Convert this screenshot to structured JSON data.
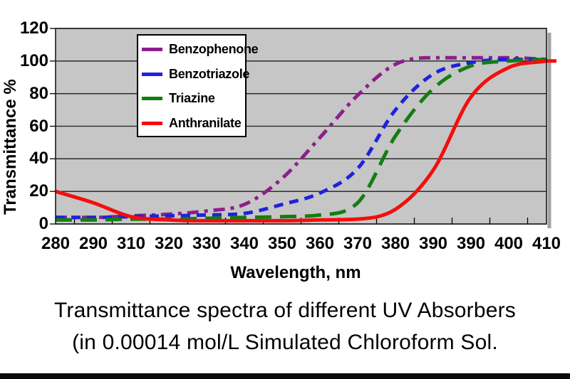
{
  "chart_data": {
    "type": "line",
    "title": "",
    "xlabel": "Wavelength, nm",
    "ylabel": "Transmittance %",
    "x_tick_labels": [
      "280",
      "290",
      "310",
      "320",
      "330",
      "340",
      "350",
      "360",
      "370",
      "380",
      "390",
      "390",
      "400",
      "410"
    ],
    "y_ticks": [
      0,
      20,
      40,
      60,
      80,
      100,
      120
    ],
    "ylim": [
      0,
      120
    ],
    "grid": "horizontal-black-lines",
    "plot_bg_color": "#c6c6c6",
    "gridline_color": "#1f1f1f",
    "legend_position": "top-left-inside",
    "series": [
      {
        "name": "Benzophenone",
        "color": "#8c1f8c",
        "dash": "dash-dot",
        "values": [
          4,
          4,
          5,
          6,
          8,
          12,
          28,
          53,
          79,
          98,
          102,
          102,
          102,
          101
        ]
      },
      {
        "name": "Benzotriazole",
        "color": "#2121dd",
        "dash": "dashed",
        "values": [
          4,
          4,
          4.5,
          5,
          5.5,
          6.5,
          12,
          19,
          34,
          70,
          92,
          99,
          101,
          101
        ]
      },
      {
        "name": "Triazine",
        "color": "#117f11",
        "dash": "long-dash",
        "values": [
          2.5,
          2.5,
          3,
          3,
          3.5,
          4,
          4.5,
          5.5,
          13,
          54,
          83,
          97,
          100,
          101
        ]
      },
      {
        "name": "Anthranilate",
        "color": "#f50d0d",
        "dash": "solid",
        "values": [
          20,
          13,
          4.5,
          2.5,
          2,
          2,
          2,
          2.5,
          3,
          9,
          33,
          78,
          96,
          100
        ]
      }
    ]
  },
  "caption": {
    "line1": "Transmittance spectra of different UV Absorbers",
    "line2": "(in 0.00014 mol/L Simulated Chloroform Sol."
  }
}
